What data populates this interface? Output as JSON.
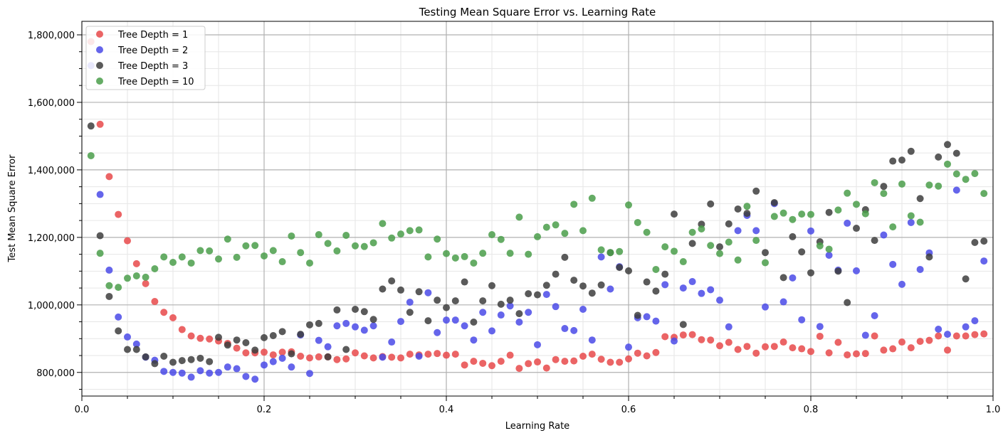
{
  "chart_data": {
    "type": "scatter",
    "title": "Testing Mean Square Error vs. Learning Rate",
    "xlabel": "Learning Rate",
    "ylabel": "Test Mean Square Error",
    "xlim": [
      0.0,
      1.0
    ],
    "ylim": [
      730000,
      1840000
    ],
    "x_ticks": [
      "0.0",
      "0.2",
      "0.4",
      "0.6",
      "0.8",
      "1.0"
    ],
    "y_ticks": [
      "800,000",
      "1,000,000",
      "1,200,000",
      "1,400,000",
      "1,600,000",
      "1,800,000"
    ],
    "grid": true,
    "minor_grid": true,
    "legend_position": "top-left",
    "x": [
      0.01,
      0.02,
      0.03,
      0.04,
      0.05,
      0.06,
      0.07,
      0.08,
      0.09,
      0.1,
      0.11,
      0.12,
      0.13,
      0.14,
      0.15,
      0.16,
      0.17,
      0.18,
      0.19,
      0.2,
      0.21,
      0.22,
      0.23,
      0.24,
      0.25,
      0.26,
      0.27,
      0.28,
      0.29,
      0.3,
      0.31,
      0.32,
      0.33,
      0.34,
      0.35,
      0.36,
      0.37,
      0.38,
      0.39,
      0.4,
      0.41,
      0.42,
      0.43,
      0.44,
      0.45,
      0.46,
      0.47,
      0.48,
      0.49,
      0.5,
      0.51,
      0.52,
      0.53,
      0.54,
      0.55,
      0.56,
      0.57,
      0.58,
      0.59,
      0.6,
      0.61,
      0.62,
      0.63,
      0.64,
      0.65,
      0.66,
      0.67,
      0.68,
      0.69,
      0.7,
      0.71,
      0.72,
      0.73,
      0.74,
      0.75,
      0.76,
      0.77,
      0.78,
      0.79,
      0.8,
      0.81,
      0.82,
      0.83,
      0.84,
      0.85,
      0.86,
      0.87,
      0.88,
      0.89,
      0.9,
      0.91,
      0.92,
      0.93,
      0.94,
      0.95,
      0.96,
      0.97,
      0.98,
      0.99
    ],
    "series": [
      {
        "name": "Tree Depth = 1",
        "color": "#e8494a",
        "values": [
          1780000,
          1535000,
          1380000,
          1268000,
          1190000,
          1122000,
          1063000,
          1010000,
          978000,
          962000,
          927000,
          908000,
          901000,
          899000,
          893000,
          886000,
          872000,
          858000,
          858000,
          860000,
          852000,
          860000,
          861000,
          848000,
          843000,
          846000,
          846000,
          838000,
          840000,
          858000,
          849000,
          843000,
          847000,
          845000,
          843000,
          854000,
          852000,
          854000,
          856000,
          851000,
          854000,
          822000,
          833000,
          827000,
          820000,
          833000,
          851000,
          812000,
          826000,
          831000,
          813000,
          838000,
          833000,
          834000,
          848000,
          854000,
          839000,
          830000,
          830000,
          840000,
          857000,
          849000,
          859000,
          906000,
          904000,
          911000,
          912000,
          897000,
          896000,
          879000,
          889000,
          868000,
          877000,
          857000,
          876000,
          877000,
          890000,
          873000,
          870000,
          862000,
          907000,
          858000,
          889000,
          852000,
          855000,
          856000,
          908000,
          866000,
          870000,
          890000,
          873000,
          892000,
          895000,
          908000,
          866000,
          908000,
          908000,
          912000,
          914000
        ]
      },
      {
        "name": "Tree Depth = 2",
        "color": "#4a4ae8",
        "values": [
          1709000,
          1327000,
          1103000,
          964000,
          905000,
          884000,
          845000,
          836000,
          803000,
          800000,
          798000,
          786000,
          805000,
          798000,
          800000,
          816000,
          811000,
          788000,
          780000,
          822000,
          832000,
          842000,
          816000,
          911000,
          797000,
          895000,
          876000,
          938000,
          945000,
          935000,
          925000,
          938000,
          845000,
          890000,
          951000,
          1008000,
          848000,
          1036000,
          918000,
          955000,
          955000,
          938000,
          896000,
          978000,
          923000,
          970000,
          997000,
          949000,
          978000,
          882000,
          1031000,
          995000,
          930000,
          924000,
          987000,
          896000,
          1142000,
          1047000,
          1113000,
          875000,
          962000,
          965000,
          952000,
          1060000,
          893000,
          1050000,
          1069000,
          1034000,
          1045000,
          1014000,
          935000,
          1220000,
          1265000,
          1220000,
          994000,
          1300000,
          1009000,
          1080000,
          956000,
          1219000,
          936000,
          1147000,
          1103000,
          1242000,
          1101000,
          910000,
          968000,
          1207000,
          1120000,
          1061000,
          1244000,
          1105000,
          1154000,
          928000,
          913000,
          1340000,
          935000,
          953000,
          1130000
        ]
      },
      {
        "name": "Tree Depth = 3",
        "color": "#3d3d3d",
        "values": [
          1530000,
          1205000,
          1025000,
          923000,
          868000,
          868000,
          846000,
          826000,
          848000,
          830000,
          835000,
          838000,
          842000,
          832000,
          904000,
          881000,
          896000,
          888000,
          866000,
          903000,
          909000,
          921000,
          855000,
          913000,
          941000,
          945000,
          846000,
          985000,
          868000,
          987000,
          980000,
          957000,
          1047000,
          1071000,
          1044000,
          978000,
          1039000,
          953000,
          1014000,
          992000,
          1012000,
          1068000,
          949000,
          1012000,
          1057000,
          1002000,
          1014000,
          974000,
          1033000,
          1030000,
          1058000,
          1091000,
          1141000,
          1073000,
          1056000,
          1035000,
          1059000,
          1155000,
          1111000,
          1101000,
          969000,
          1068000,
          1041000,
          1091000,
          1269000,
          942000,
          1182000,
          1239000,
          1299000,
          1172000,
          1240000,
          1284000,
          1271000,
          1337000,
          1155000,
          1303000,
          1081000,
          1202000,
          1157000,
          1095000,
          1187000,
          1274000,
          1100000,
          1007000,
          1227000,
          1282000,
          1191000,
          1351000,
          1426000,
          1429000,
          1455000,
          1315000,
          1142000,
          1438000,
          1475000,
          1449000,
          1077000,
          1185000,
          1189000
        ]
      },
      {
        "name": "Tree Depth = 10",
        "color": "#4a9e4a",
        "values": [
          1442000,
          1153000,
          1057000,
          1052000,
          1079000,
          1086000,
          1082000,
          1107000,
          1142000,
          1126000,
          1142000,
          1124000,
          1161000,
          1160000,
          1136000,
          1195000,
          1141000,
          1175000,
          1176000,
          1145000,
          1161000,
          1128000,
          1204000,
          1155000,
          1124000,
          1208000,
          1182000,
          1160000,
          1206000,
          1175000,
          1173000,
          1184000,
          1241000,
          1198000,
          1210000,
          1220000,
          1222000,
          1142000,
          1195000,
          1152000,
          1139000,
          1143000,
          1124000,
          1153000,
          1208000,
          1194000,
          1153000,
          1260000,
          1150000,
          1202000,
          1230000,
          1237000,
          1212000,
          1298000,
          1220000,
          1316000,
          1163000,
          1155000,
          1158000,
          1296000,
          1244000,
          1215000,
          1105000,
          1172000,
          1159000,
          1128000,
          1215000,
          1225000,
          1176000,
          1152000,
          1186000,
          1133000,
          1292000,
          1191000,
          1125000,
          1262000,
          1272000,
          1253000,
          1269000,
          1268000,
          1175000,
          1165000,
          1281000,
          1331000,
          1298000,
          1270000,
          1362000,
          1330000,
          1231000,
          1358000,
          1264000,
          1245000,
          1355000,
          1352000,
          1417000,
          1388000,
          1372000,
          1389000,
          1330000
        ]
      }
    ]
  }
}
